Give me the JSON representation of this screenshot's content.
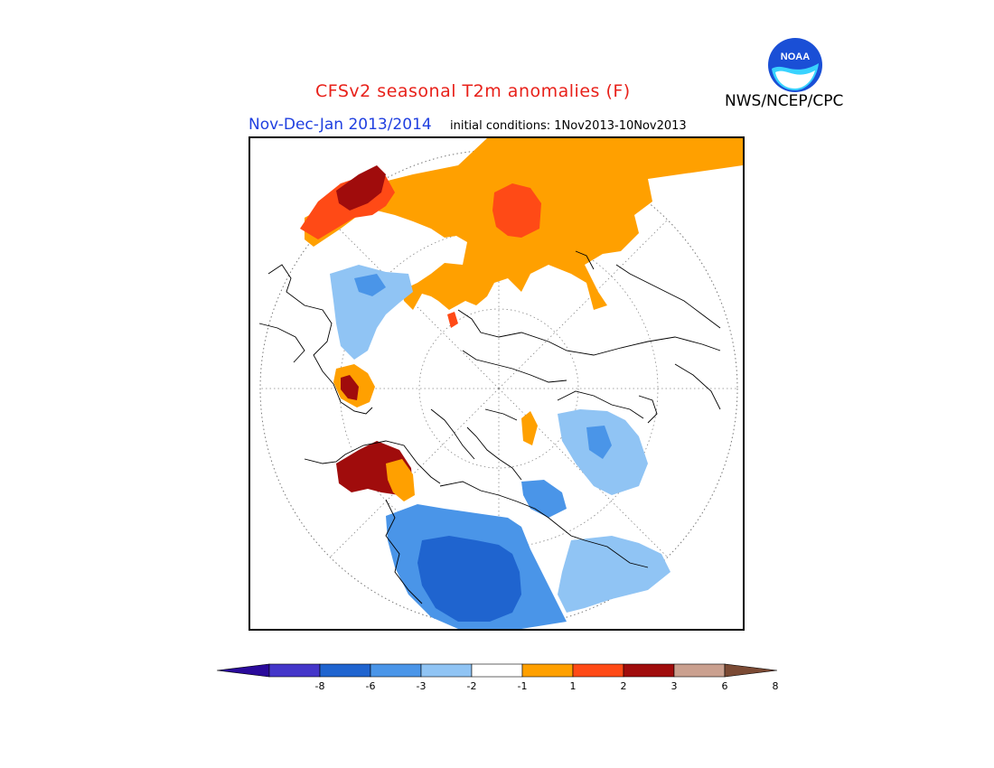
{
  "header": {
    "title": "CFSv2 seasonal T2m anomalies (F)",
    "title_color": "#e8211a",
    "agency": "NWS/NCEP/CPC",
    "logo_text": "NOAA",
    "season": "Nov-Dec-Jan 2013/2014",
    "season_color": "#1f3fe0",
    "initial_conditions": "initial conditions: 1Nov2013-10Nov2013"
  },
  "map": {
    "projection": "north-polar-stereographic",
    "variable": "T2m anomaly",
    "units": "F"
  },
  "colorbar": {
    "labels": [
      "-8",
      "-6",
      "-3",
      "-2",
      "-1",
      "1",
      "2",
      "3",
      "6",
      "8"
    ],
    "colors": [
      "#2a0a9b",
      "#4436c9",
      "#1f64cf",
      "#4a95e8",
      "#90c4f4",
      "#ffffff",
      "#ffa000",
      "#ff4a16",
      "#a00c0c",
      "#caa08f",
      "#7b4a34"
    ]
  }
}
